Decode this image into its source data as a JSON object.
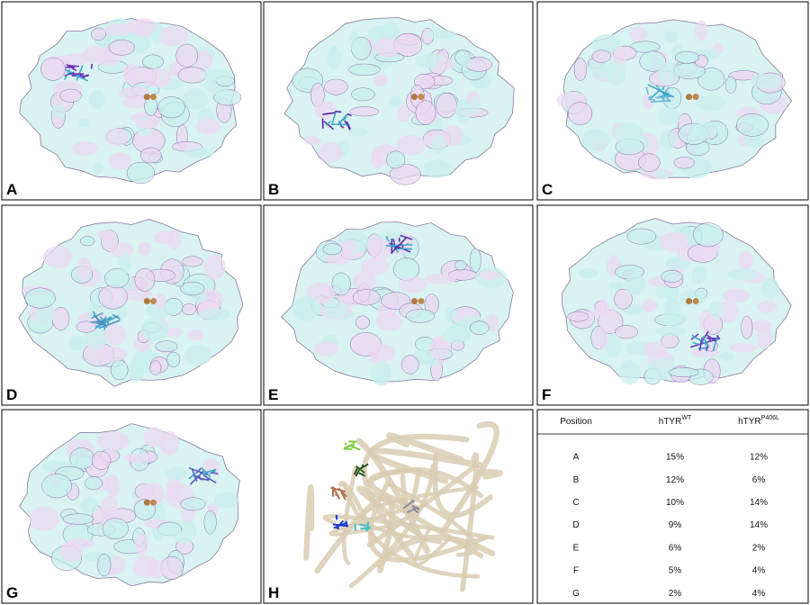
{
  "panels": [
    {
      "label": "A"
    },
    {
      "label": "B"
    },
    {
      "label": "C"
    },
    {
      "label": "D"
    },
    {
      "label": "E"
    },
    {
      "label": "F"
    },
    {
      "label": "G"
    },
    {
      "label": "H"
    }
  ],
  "table": {
    "header": [
      {
        "text": "Position"
      },
      {
        "text": "hTYR",
        "sup": "WT"
      },
      {
        "text": "hTYR",
        "sup": "P406L"
      }
    ],
    "rows": [
      [
        "A",
        "15%",
        "12%"
      ],
      [
        "B",
        "12%",
        "6%"
      ],
      [
        "C",
        "10%",
        "14%"
      ],
      [
        "D",
        "9%",
        "14%"
      ],
      [
        "E",
        "6%",
        "2%"
      ],
      [
        "F",
        "5%",
        "4%"
      ],
      [
        "G",
        "2%",
        "4%"
      ]
    ]
  }
}
